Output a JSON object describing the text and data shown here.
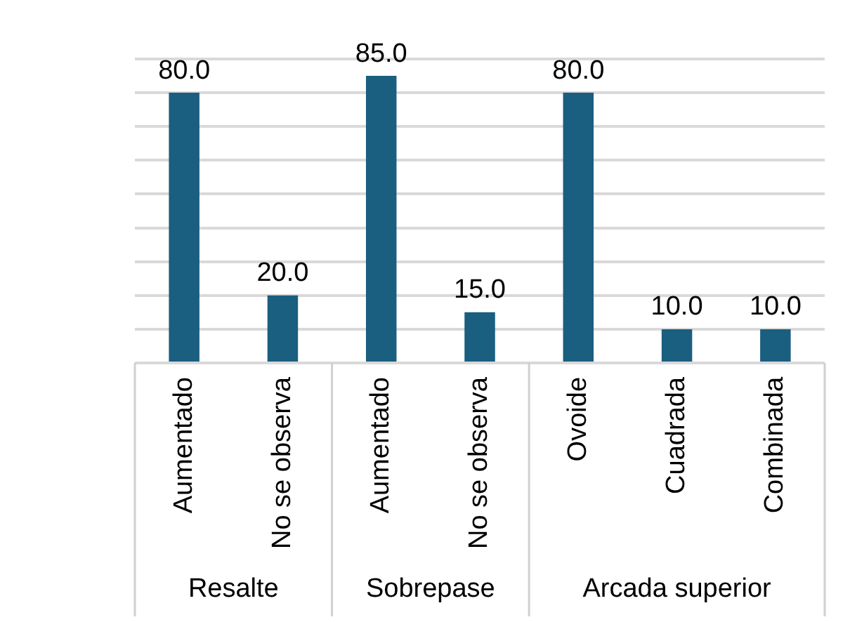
{
  "chart_data": {
    "type": "bar",
    "categories": [
      "Aumentado",
      "No se observa",
      "Aumentado",
      "No se observa",
      "Ovoide",
      "Cuadrada",
      "Combinada"
    ],
    "values": [
      80,
      20,
      85,
      15,
      80,
      10,
      10
    ],
    "value_labels": [
      "80.0",
      "20.0",
      "85.0",
      "15.0",
      "80.0",
      "10.0",
      "10.0"
    ],
    "color": "#1a5e80",
    "ylim": [
      0,
      90
    ],
    "yticks": [
      {
        "value": 0,
        "label": null
      },
      {
        "value": 10,
        "label": null
      },
      {
        "value": 20,
        "label": null
      },
      {
        "value": 30,
        "label": null
      },
      {
        "value": 40,
        "label": null
      },
      {
        "value": 50,
        "label": null
      },
      {
        "value": 60,
        "label": null
      },
      {
        "value": 70,
        "label": null
      },
      {
        "value": 80,
        "label": null
      },
      {
        "value": 90,
        "label": null
      }
    ],
    "grid": "y",
    "tick_labels": "x",
    "annotations": [
      "Resalte",
      "Sobrepase",
      "Arcada superior"
    ]
  }
}
